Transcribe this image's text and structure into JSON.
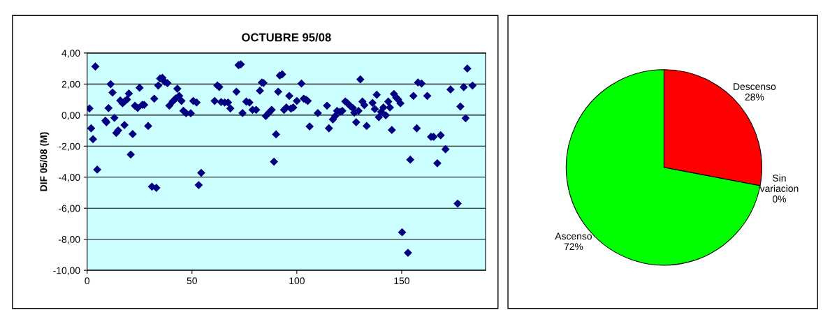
{
  "chart_data": [
    {
      "type": "scatter",
      "title": "OCTUBRE 95/08",
      "ylabel": "DIF 05/08 (M)",
      "marker": "diamond",
      "grid": "y",
      "legend": false,
      "xlim": [
        0,
        190
      ],
      "xticks": [
        0,
        50,
        100,
        150
      ],
      "ylim": [
        -10,
        4
      ],
      "yticks": [
        {
          "value": -10,
          "label": "-10,00"
        },
        {
          "value": -8,
          "label": "-8,00"
        },
        {
          "value": -6,
          "label": "-6,00"
        },
        {
          "value": -4,
          "label": "-4,00"
        },
        {
          "value": -2,
          "label": "-2,00"
        },
        {
          "value": 0,
          "label": "0,00"
        },
        {
          "value": 2,
          "label": "2,00"
        },
        {
          "value": 4,
          "label": "4,00"
        }
      ],
      "series": [
        {
          "color": "#000080",
          "x": [
            1.1,
            1.9,
            2.8,
            3.9,
            4.8,
            8.7,
            9.2,
            10.2,
            11.2,
            12.1,
            13,
            13.9,
            14.8,
            15.8,
            16.9,
            17.8,
            18,
            19,
            19.9,
            20.8,
            21.7,
            22.8,
            24.1,
            25,
            26.3,
            27.2,
            29.1,
            30.9,
            32,
            33,
            33.9,
            34.8,
            35.9,
            37,
            38.3,
            39.2,
            40.8,
            42.2,
            43,
            43.9,
            45,
            45.9,
            47.2,
            49.4,
            50.6,
            52.2,
            53.2,
            54.4,
            60.8,
            62.1,
            63,
            63.9,
            65.6,
            67.2,
            68.3,
            71.2,
            72.2,
            73.3,
            74.1,
            75.9,
            77.4,
            78.9,
            80.6,
            82.4,
            83.3,
            84.1,
            85.2,
            86.7,
            88,
            89.1,
            90.1,
            91.1,
            91.9,
            93,
            93.9,
            95,
            96.4,
            97.2,
            98.3,
            100,
            102.2,
            103.3,
            104.4,
            105.2,
            106.1,
            110,
            114.4,
            115.3,
            117.2,
            118.3,
            119.2,
            120.6,
            121.7,
            123.1,
            124.2,
            125.6,
            126.7,
            127.4,
            128.3,
            129.4,
            130.3,
            131.3,
            132.2,
            133.3,
            136.1,
            137.2,
            138.1,
            139.1,
            140.2,
            141.3,
            142.4,
            143.6,
            144.4,
            145.3,
            146.3,
            147.4,
            148.3,
            149.4,
            150.2,
            153,
            154.1,
            155.6,
            157.2,
            157.8,
            159.5,
            162.2,
            164,
            165.2,
            167,
            168.6,
            170.9,
            173.3,
            176.7,
            178,
            179.6,
            180.5,
            181.3,
            183.8
          ],
          "values": [
            0.43,
            -0.85,
            -1.55,
            3.13,
            -3.51,
            -0.36,
            -0.46,
            0.45,
            1.99,
            1.45,
            -0.18,
            -1.15,
            -0.99,
            0.94,
            0.76,
            -0.64,
            0.9,
            1.01,
            1.39,
            -2.54,
            -1.22,
            0.6,
            0.46,
            1.76,
            0.66,
            0.66,
            -0.7,
            -4.61,
            1.06,
            -4.69,
            1.9,
            2.36,
            2.4,
            2.15,
            2.06,
            0.61,
            0.88,
            1.07,
            1.7,
            1.24,
            0.91,
            0.28,
            0.12,
            0.12,
            0.91,
            0.81,
            -4.51,
            -3.72,
            0.91,
            1.91,
            1.81,
            0.84,
            0.81,
            0.81,
            0.43,
            1.51,
            3.22,
            3.27,
            0.13,
            0.87,
            0.81,
            0.34,
            0.34,
            1.57,
            2.1,
            2.07,
            -0.06,
            0.16,
            0.34,
            -3.0,
            -1.24,
            1.51,
            2.55,
            2.63,
            0.34,
            0.49,
            1.24,
            0.42,
            0.49,
            0.91,
            2.03,
            1.06,
            0.99,
            0.91,
            -0.73,
            0.13,
            0.61,
            -0.85,
            -0.28,
            -0.06,
            0.27,
            0.21,
            0.27,
            0.88,
            0.76,
            0.57,
            0.46,
            0.16,
            -0.46,
            0.27,
            2.3,
            0.87,
            0.64,
            -0.7,
            0.79,
            0.39,
            1.31,
            -0.13,
            0.21,
            0.49,
            -0.01,
            0.87,
            0.49,
            -0.96,
            1.36,
            1.13,
            1.01,
            0.76,
            -7.55,
            -8.87,
            -2.87,
            1.24,
            -0.85,
            2.1,
            2.03,
            1.24,
            -1.4,
            -1.4,
            -3.1,
            -1.3,
            -2.2,
            1.65,
            -5.7,
            0.55,
            1.8,
            -0.2,
            3.0,
            1.9
          ]
        }
      ]
    },
    {
      "type": "pie",
      "categories": [
        "Descenso",
        "Sin variacion",
        "Ascenso"
      ],
      "values": [
        28,
        0,
        72
      ],
      "colors": [
        "#ff0000",
        "#ffffff",
        "#00ff00"
      ],
      "value_labels": [
        "28%",
        "0%",
        "72%"
      ]
    }
  ]
}
